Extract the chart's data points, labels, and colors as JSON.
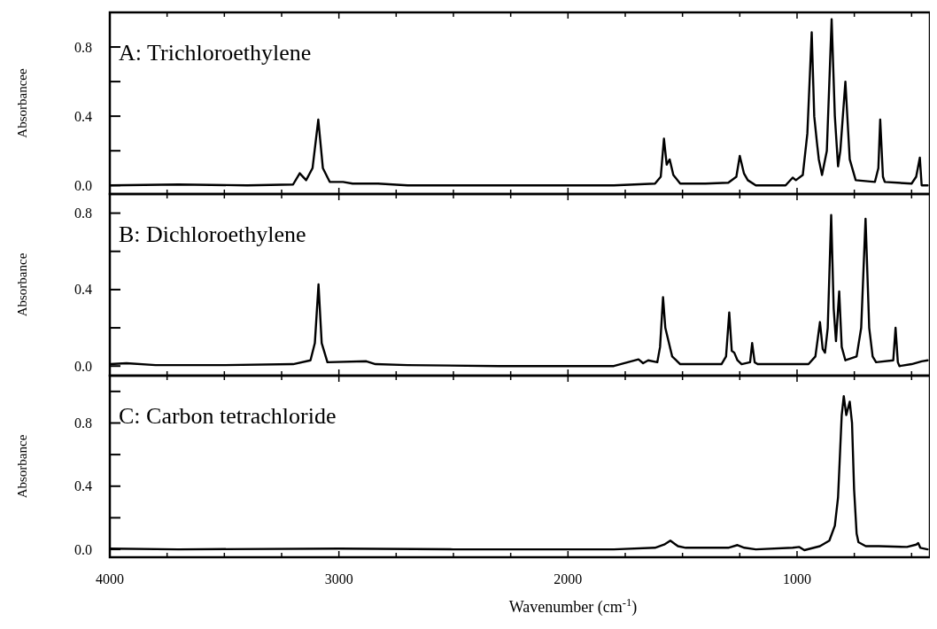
{
  "chart_data": [
    {
      "type": "line",
      "title": "A: Trichloroethylene",
      "ylabel": "Absorbancee",
      "xlim": [
        4000,
        420
      ],
      "xticks": [
        4000,
        {
          "value": 3750,
          "label": null
        },
        {
          "value": 3500,
          "label": null
        },
        {
          "value": 3250,
          "label": null
        },
        3000,
        {
          "value": 2750,
          "label": null
        },
        {
          "value": 2500,
          "label": null
        },
        {
          "value": 2250,
          "label": null
        },
        2000,
        {
          "value": 1750,
          "label": null
        },
        {
          "value": 1500,
          "label": null
        },
        {
          "value": 1250,
          "label": null
        },
        1000,
        {
          "value": 750,
          "label": null
        },
        {
          "value": 500,
          "label": null
        }
      ],
      "ylim": [
        -0.05,
        1.0
      ],
      "yticks": [
        {
          "value": 0,
          "label": "0.0"
        },
        {
          "value": 0.2,
          "label": null
        },
        {
          "value": 0.4,
          "label": "0.4"
        },
        {
          "value": 0.6,
          "label": null
        },
        {
          "value": 0.8,
          "label": "0.8"
        }
      ],
      "tick_labels": "y",
      "series": [
        {
          "color": "#000000",
          "x": [
            4000,
            3700,
            3400,
            3200,
            3171,
            3143,
            3115,
            3090,
            3070,
            3040,
            2982,
            2940,
            2829,
            2700,
            2300,
            1800,
            1620,
            1595,
            1581,
            1569,
            1556,
            1540,
            1510,
            1400,
            1300,
            1265,
            1250,
            1232,
            1215,
            1180,
            1050,
            1019,
            1005,
            975,
            955,
            936,
            925,
            913,
            905,
            891,
            870,
            849,
            835,
            821,
            811,
            789,
            770,
            744,
            660,
            645,
            637,
            625,
            617,
            500,
            480,
            464,
            456,
            430
          ],
          "values": [
            0.0,
            0.005,
            0.0,
            0.005,
            0.07,
            0.03,
            0.1,
            0.38,
            0.1,
            0.02,
            0.02,
            0.01,
            0.01,
            0.0,
            0.0,
            0.0,
            0.01,
            0.05,
            0.27,
            0.12,
            0.15,
            0.06,
            0.01,
            0.01,
            0.015,
            0.05,
            0.17,
            0.07,
            0.03,
            0.0,
            0.0,
            0.045,
            0.03,
            0.06,
            0.3,
            0.885,
            0.4,
            0.245,
            0.15,
            0.06,
            0.2,
            0.96,
            0.4,
            0.11,
            0.2,
            0.6,
            0.15,
            0.03,
            0.02,
            0.1,
            0.38,
            0.05,
            0.02,
            0.01,
            0.05,
            0.16,
            0.0,
            0.0
          ]
        }
      ]
    },
    {
      "type": "line",
      "title": "B: Dichloroethylene",
      "ylabel": "Absorbance",
      "xlim": [
        4000,
        420
      ],
      "xticks": [
        4000,
        {
          "value": 3750,
          "label": null
        },
        {
          "value": 3500,
          "label": null
        },
        {
          "value": 3250,
          "label": null
        },
        3000,
        {
          "value": 2750,
          "label": null
        },
        {
          "value": 2500,
          "label": null
        },
        {
          "value": 2250,
          "label": null
        },
        2000,
        {
          "value": 1750,
          "label": null
        },
        {
          "value": 1500,
          "label": null
        },
        {
          "value": 1250,
          "label": null
        },
        1000,
        {
          "value": 750,
          "label": null
        },
        {
          "value": 500,
          "label": null
        }
      ],
      "ylim": [
        -0.05,
        0.9
      ],
      "yticks": [
        {
          "value": 0,
          "label": "0.0"
        },
        {
          "value": 0.2,
          "label": null
        },
        {
          "value": 0.4,
          "label": "0.4"
        },
        {
          "value": 0.6,
          "label": null
        },
        {
          "value": 0.8,
          "label": "0.8"
        }
      ],
      "tick_labels": "y",
      "series": [
        {
          "color": "#000000",
          "x": [
            4000,
            3927,
            3800,
            3500,
            3200,
            3124,
            3105,
            3089,
            3075,
            3050,
            2880,
            2840,
            2700,
            2300,
            1800,
            1692,
            1672,
            1650,
            1610,
            1598,
            1585,
            1575,
            1567,
            1545,
            1510,
            1330,
            1310,
            1296,
            1285,
            1274,
            1260,
            1242,
            1205,
            1196,
            1185,
            1172,
            950,
            920,
            900,
            888,
            878,
            866,
            851,
            840,
            830,
            816,
            805,
            789,
            740,
            720,
            701,
            685,
            670,
            655,
            580,
            570,
            560,
            553,
            500,
            456,
            430
          ],
          "values": [
            0.01,
            0.015,
            0.005,
            0.005,
            0.01,
            0.03,
            0.12,
            0.427,
            0.12,
            0.02,
            0.025,
            0.01,
            0.005,
            0.0,
            0.0,
            0.035,
            0.015,
            0.03,
            0.02,
            0.1,
            0.36,
            0.2,
            0.16,
            0.05,
            0.01,
            0.01,
            0.05,
            0.28,
            0.08,
            0.07,
            0.03,
            0.01,
            0.02,
            0.12,
            0.02,
            0.01,
            0.01,
            0.05,
            0.23,
            0.09,
            0.07,
            0.2,
            0.79,
            0.3,
            0.13,
            0.39,
            0.1,
            0.03,
            0.05,
            0.2,
            0.77,
            0.2,
            0.05,
            0.02,
            0.03,
            0.2,
            0.02,
            0.0,
            0.01,
            0.025,
            0.03
          ]
        }
      ]
    },
    {
      "type": "line",
      "title": "C: Carbon tetrachloride",
      "ylabel": "Absorbance",
      "xlabel": "Wavenumber (cm$^{-1}$)",
      "xlim": [
        4000,
        420
      ],
      "xticks": [
        4000,
        {
          "value": 3750,
          "label": null
        },
        {
          "value": 3500,
          "label": null
        },
        {
          "value": 3250,
          "label": null
        },
        3000,
        {
          "value": 2750,
          "label": null
        },
        {
          "value": 2500,
          "label": null
        },
        {
          "value": 2250,
          "label": null
        },
        2000,
        {
          "value": 1750,
          "label": null
        },
        {
          "value": 1500,
          "label": null
        },
        {
          "value": 1250,
          "label": null
        },
        1000,
        {
          "value": 750,
          "label": null
        },
        {
          "value": 500,
          "label": null
        }
      ],
      "ylim": [
        -0.05,
        1.1
      ],
      "yticks": [
        {
          "value": 0,
          "label": "0.0"
        },
        {
          "value": 0.2,
          "label": null
        },
        {
          "value": 0.4,
          "label": "0.4"
        },
        {
          "value": 0.6,
          "label": null
        },
        {
          "value": 0.8,
          "label": "0.8"
        },
        {
          "value": 1.0,
          "label": null
        }
      ],
      "series": [
        {
          "color": "#000000",
          "x": [
            4000,
            3700,
            3000,
            2500,
            1800,
            1620,
            1580,
            1553,
            1520,
            1486,
            1300,
            1260,
            1230,
            1180,
            1019,
            990,
            968,
            900,
            859,
            835,
            821,
            805,
            796,
            785,
            770,
            760,
            751,
            740,
            732,
            700,
            643,
            520,
            480,
            471,
            462,
            430
          ],
          "values": [
            0.005,
            0.0,
            0.005,
            0.0,
            0.0,
            0.01,
            0.03,
            0.055,
            0.02,
            0.01,
            0.01,
            0.027,
            0.01,
            0.0,
            0.01,
            0.015,
            -0.005,
            0.02,
            0.055,
            0.15,
            0.33,
            0.85,
            0.97,
            0.85,
            0.935,
            0.8,
            0.38,
            0.1,
            0.045,
            0.02,
            0.02,
            0.015,
            0.03,
            0.04,
            0.01,
            0.0
          ]
        }
      ]
    }
  ]
}
